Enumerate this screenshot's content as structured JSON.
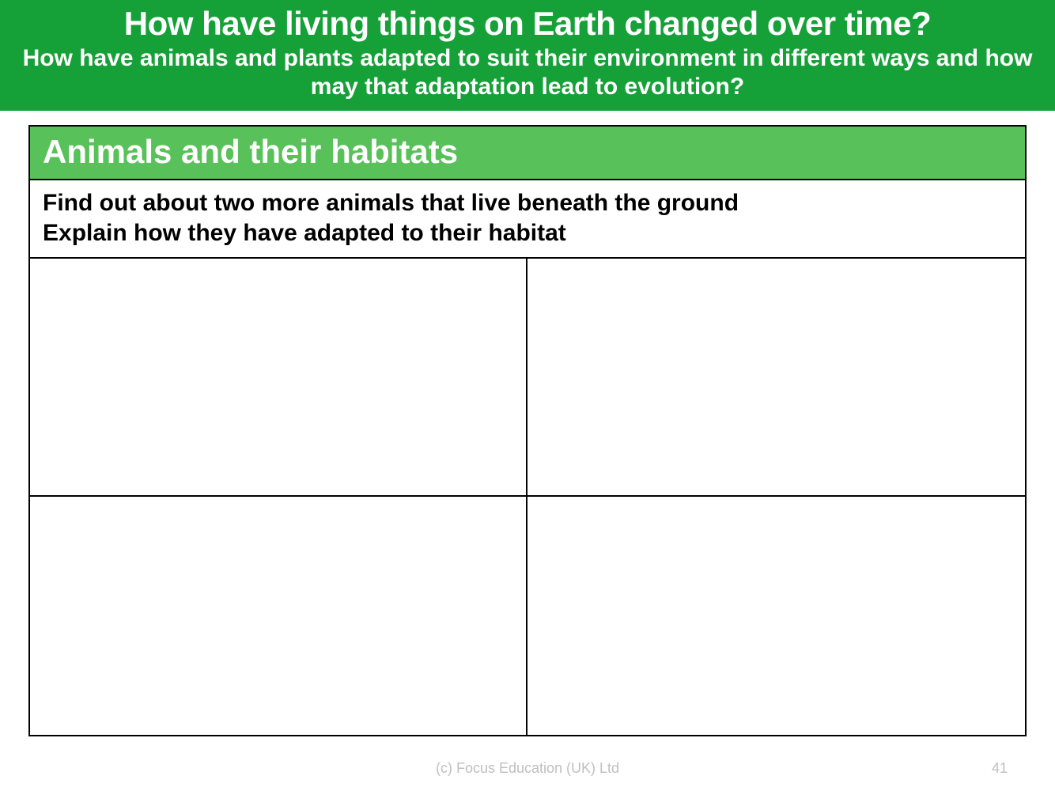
{
  "banner": {
    "title": "How have living things on Earth changed over time?",
    "subtitle": "How have animals and plants adapted to suit their environment in different ways and how may that adaptation lead to evolution?",
    "background_color": "#16a038",
    "text_color": "#ffffff",
    "title_fontsize": 42,
    "subtitle_fontsize": 30
  },
  "sheet": {
    "header": {
      "text": "Animals and their habitats",
      "background_color": "#59c159",
      "text_color": "#ffffff",
      "fontsize": 42
    },
    "instructions": {
      "line1": "Find out about two more animals that live beneath the ground",
      "line2": "Explain how they have adapted to their habitat",
      "fontsize": 30,
      "text_color": "#000000"
    },
    "grid": {
      "rows": 2,
      "cols": 2,
      "border_color": "#000000",
      "cells": [
        "",
        "",
        "",
        ""
      ]
    },
    "border_color": "#000000"
  },
  "footer": {
    "copyright": "(c) Focus Education (UK) Ltd",
    "page_number": "41",
    "text_color": "#bfbfbf",
    "fontsize": 18
  }
}
